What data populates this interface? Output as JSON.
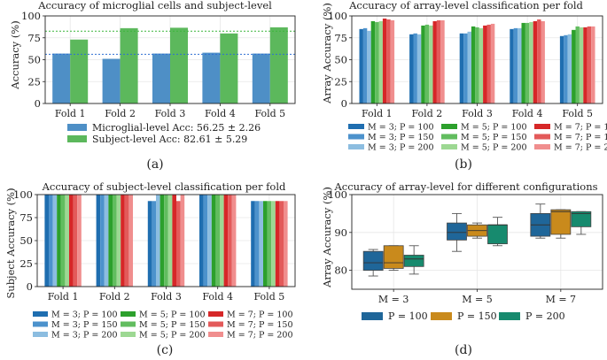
{
  "captions": [
    "(a)",
    "(b)",
    "(c)",
    "(d)"
  ],
  "chart_data": [
    {
      "type": "bar",
      "title": "Accuracy of microglial cells and subject-level",
      "ylabel": "Accuracy (%)",
      "ylim": [
        0,
        100
      ],
      "yticks": [
        0,
        25,
        50,
        75,
        100
      ],
      "categories": [
        "Fold 1",
        "Fold 2",
        "Fold 3",
        "Fold 4",
        "Fold 5"
      ],
      "series": [
        {
          "name": "Microglial-level Acc: 56.25 ± 2.26",
          "color": "#4e8fc6",
          "values": [
            57,
            51,
            57,
            58,
            57
          ]
        },
        {
          "name": "Subject-level Acc: 82.61 ± 5.29",
          "color": "#5cb85c",
          "values": [
            73,
            86,
            86.5,
            80,
            87
          ]
        }
      ],
      "reference_lines": [
        {
          "value": 56.25,
          "color": "#2e6fd3"
        },
        {
          "value": 82.61,
          "color": "#3cb53c"
        }
      ]
    },
    {
      "type": "bar",
      "title": "Accuracy of array-level classification per fold",
      "ylabel": "Array Accuracy (%)",
      "ylim": [
        0,
        100
      ],
      "yticks": [
        0,
        25,
        50,
        75,
        100
      ],
      "categories": [
        "Fold 1",
        "Fold 2",
        "Fold 3",
        "Fold 4",
        "Fold 5"
      ],
      "series": [
        {
          "name": "M = 3; P = 100",
          "color": "#1f6eb0",
          "values": [
            85,
            79,
            80,
            85,
            77
          ]
        },
        {
          "name": "M = 3; P = 150",
          "color": "#4c92cc",
          "values": [
            86,
            80,
            80,
            86,
            78
          ]
        },
        {
          "name": "M = 3; P = 200",
          "color": "#8cbde0",
          "values": [
            83,
            79,
            82,
            86,
            79
          ]
        },
        {
          "name": "M = 5; P = 100",
          "color": "#2ca02c",
          "values": [
            94,
            89,
            88,
            92,
            84
          ]
        },
        {
          "name": "M = 5; P = 150",
          "color": "#62bd5f",
          "values": [
            93,
            90,
            87,
            92,
            88
          ]
        },
        {
          "name": "M = 5; P = 200",
          "color": "#9dd893",
          "values": [
            94,
            89,
            86,
            93,
            87
          ]
        },
        {
          "name": "M = 7; P = 100",
          "color": "#d62728",
          "values": [
            97,
            94,
            89,
            94,
            87
          ]
        },
        {
          "name": "M = 7; P = 150",
          "color": "#e35a5a",
          "values": [
            96,
            95,
            90,
            96,
            88
          ]
        },
        {
          "name": "M = 7; P = 200",
          "color": "#f08e8e",
          "values": [
            95,
            95,
            91,
            94,
            88
          ]
        }
      ]
    },
    {
      "type": "bar",
      "title": "Accuracy of subject-level classification per fold",
      "ylabel": "Subject Accuracy (%)",
      "ylim": [
        0,
        100
      ],
      "yticks": [
        0,
        25,
        50,
        75,
        100
      ],
      "categories": [
        "Fold 1",
        "Fold 2",
        "Fold 3",
        "Fold 4",
        "Fold 5"
      ],
      "series": [
        {
          "name": "M = 3; P = 100",
          "color": "#1f6eb0",
          "values": [
            100,
            100,
            93,
            100,
            93
          ]
        },
        {
          "name": "M = 3; P = 150",
          "color": "#4c92cc",
          "values": [
            100,
            100,
            93,
            100,
            93
          ]
        },
        {
          "name": "M = 3; P = 200",
          "color": "#8cbde0",
          "values": [
            100,
            100,
            100,
            100,
            93
          ]
        },
        {
          "name": "M = 5; P = 100",
          "color": "#2ca02c",
          "values": [
            100,
            100,
            100,
            100,
            93
          ]
        },
        {
          "name": "M = 5; P = 150",
          "color": "#62bd5f",
          "values": [
            100,
            100,
            100,
            100,
            93
          ]
        },
        {
          "name": "M = 5; P = 200",
          "color": "#9dd893",
          "values": [
            100,
            100,
            100,
            100,
            93
          ]
        },
        {
          "name": "M = 7; P = 100",
          "color": "#d62728",
          "values": [
            100,
            100,
            100,
            100,
            93
          ]
        },
        {
          "name": "M = 7; P = 150",
          "color": "#e35a5a",
          "values": [
            100,
            100,
            93,
            100,
            93
          ]
        },
        {
          "name": "M = 7; P = 200",
          "color": "#f08e8e",
          "values": [
            100,
            100,
            100,
            100,
            93
          ]
        }
      ]
    },
    {
      "type": "box",
      "title": "Accuracy of array-level for different configurations",
      "ylabel": "Array Accuracy (%)",
      "ylim": [
        75,
        100
      ],
      "yticks": [
        80,
        90,
        100
      ],
      "categories": [
        "M = 3",
        "M = 5",
        "M = 7"
      ],
      "series": [
        {
          "name": "P = 100",
          "color": "#1f6699",
          "boxes": [
            {
              "min": 78.5,
              "q1": 80,
              "median": 82,
              "q3": 85,
              "max": 85.5
            },
            {
              "min": 85,
              "q1": 88,
              "median": 90,
              "q3": 92.5,
              "max": 95
            },
            {
              "min": 88.5,
              "q1": 89,
              "median": 92,
              "q3": 95,
              "max": 97.5
            }
          ]
        },
        {
          "name": "P = 150",
          "color": "#c98a1c",
          "boxes": [
            {
              "min": 80,
              "q1": 80.5,
              "median": 82,
              "q3": 86.5,
              "max": 86.5
            },
            {
              "min": 88.5,
              "q1": 89,
              "median": 90.5,
              "q3": 92,
              "max": 92.5
            },
            {
              "min": 88.5,
              "q1": 89.5,
              "median": 95.5,
              "q3": 96,
              "max": 96
            }
          ]
        },
        {
          "name": "P = 200",
          "color": "#178a6e",
          "boxes": [
            {
              "min": 79,
              "q1": 81,
              "median": 83,
              "q3": 84,
              "max": 86.5
            },
            {
              "min": 86.5,
              "q1": 87,
              "median": 92,
              "q3": 92,
              "max": 94
            },
            {
              "min": 89.5,
              "q1": 91.5,
              "median": 95,
              "q3": 95.5,
              "max": 95.5
            }
          ]
        }
      ]
    }
  ]
}
